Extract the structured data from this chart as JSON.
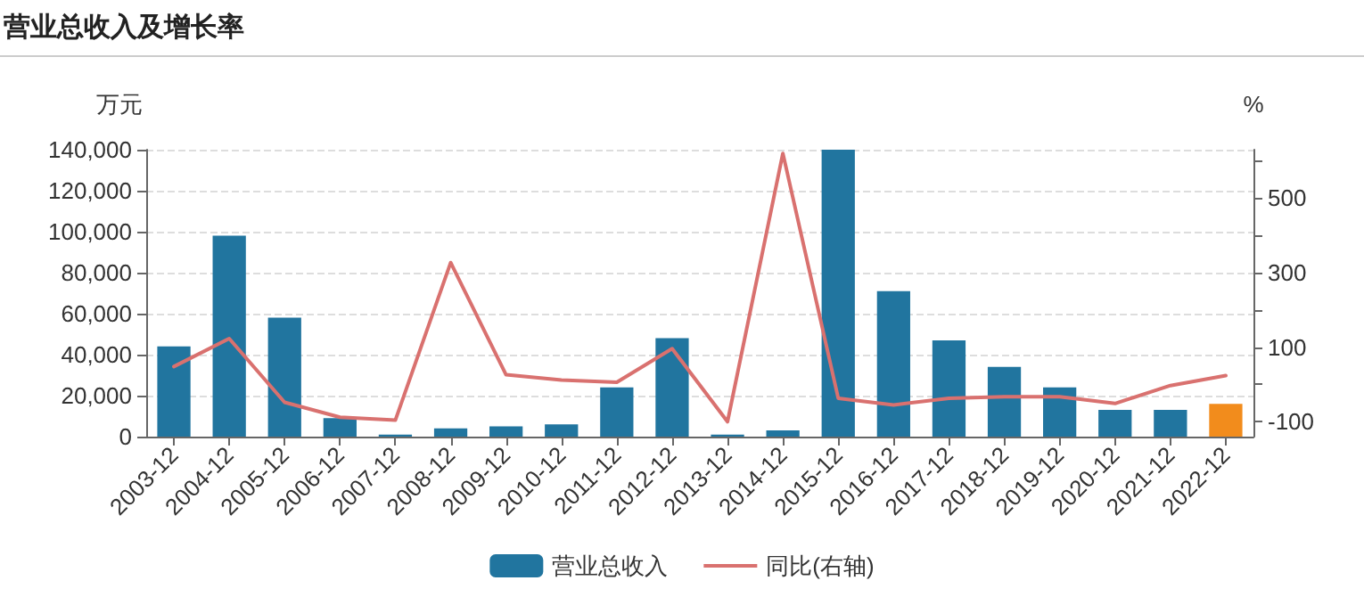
{
  "chart_data": {
    "type": "bar",
    "title": "营业总收入及增长率",
    "ylabel": "万元",
    "y2label": "%",
    "categories": [
      "2003-12",
      "2004-12",
      "2005-12",
      "2006-12",
      "2007-12",
      "2008-12",
      "2009-12",
      "2010-12",
      "2011-12",
      "2012-12",
      "2013-12",
      "2014-12",
      "2015-12",
      "2016-12",
      "2017-12",
      "2018-12",
      "2019-12",
      "2020-12",
      "2021-12",
      "2022-12"
    ],
    "series": [
      {
        "name": "营业总收入",
        "color": "#21759f",
        "colors": [
          "#21759f",
          "#21759f",
          "#21759f",
          "#21759f",
          "#21759f",
          "#21759f",
          "#21759f",
          "#21759f",
          "#21759f",
          "#21759f",
          "#21759f",
          "#21759f",
          "#21759f",
          "#21759f",
          "#21759f",
          "#21759f",
          "#21759f",
          "#21759f",
          "#21759f",
          "#f28c1c"
        ],
        "values": [
          44000,
          98000,
          58000,
          9000,
          1000,
          4000,
          5000,
          6000,
          24000,
          48000,
          1000,
          3000,
          140000,
          71000,
          47000,
          34000,
          24000,
          13000,
          13000,
          16000
        ]
      },
      {
        "name": "同比(右轴)",
        "type": "line",
        "axis": "y2",
        "color": "#d9716f",
        "values": [
          48,
          123,
          -48,
          -88,
          -96,
          327,
          26,
          12,
          6,
          96,
          -100,
          620,
          -37,
          -55,
          -37,
          -33,
          -33,
          -51,
          -3,
          24
        ]
      }
    ],
    "ylim": [
      0,
      140000
    ],
    "yticks": [
      {
        "value": 0,
        "label": "0"
      },
      {
        "value": 20000,
        "label": "20,000"
      },
      {
        "value": 40000,
        "label": "40,000"
      },
      {
        "value": 60000,
        "label": "60,000"
      },
      {
        "value": 80000,
        "label": "80,000"
      },
      {
        "value": 100000,
        "label": "100,000"
      },
      {
        "value": 120000,
        "label": "120,000"
      },
      {
        "value": 140000,
        "label": "140,000"
      }
    ],
    "y2lim": [
      -140,
      630
    ],
    "y2ticks": [
      -100,
      {
        "value": 0,
        "label": null
      },
      100,
      {
        "value": 200,
        "label": null
      },
      300,
      {
        "value": 400,
        "label": null
      },
      500,
      {
        "value": 600,
        "label": null
      }
    ],
    "grid": "y",
    "legend": "bottom",
    "marker": "none",
    "line_style": "solid"
  }
}
